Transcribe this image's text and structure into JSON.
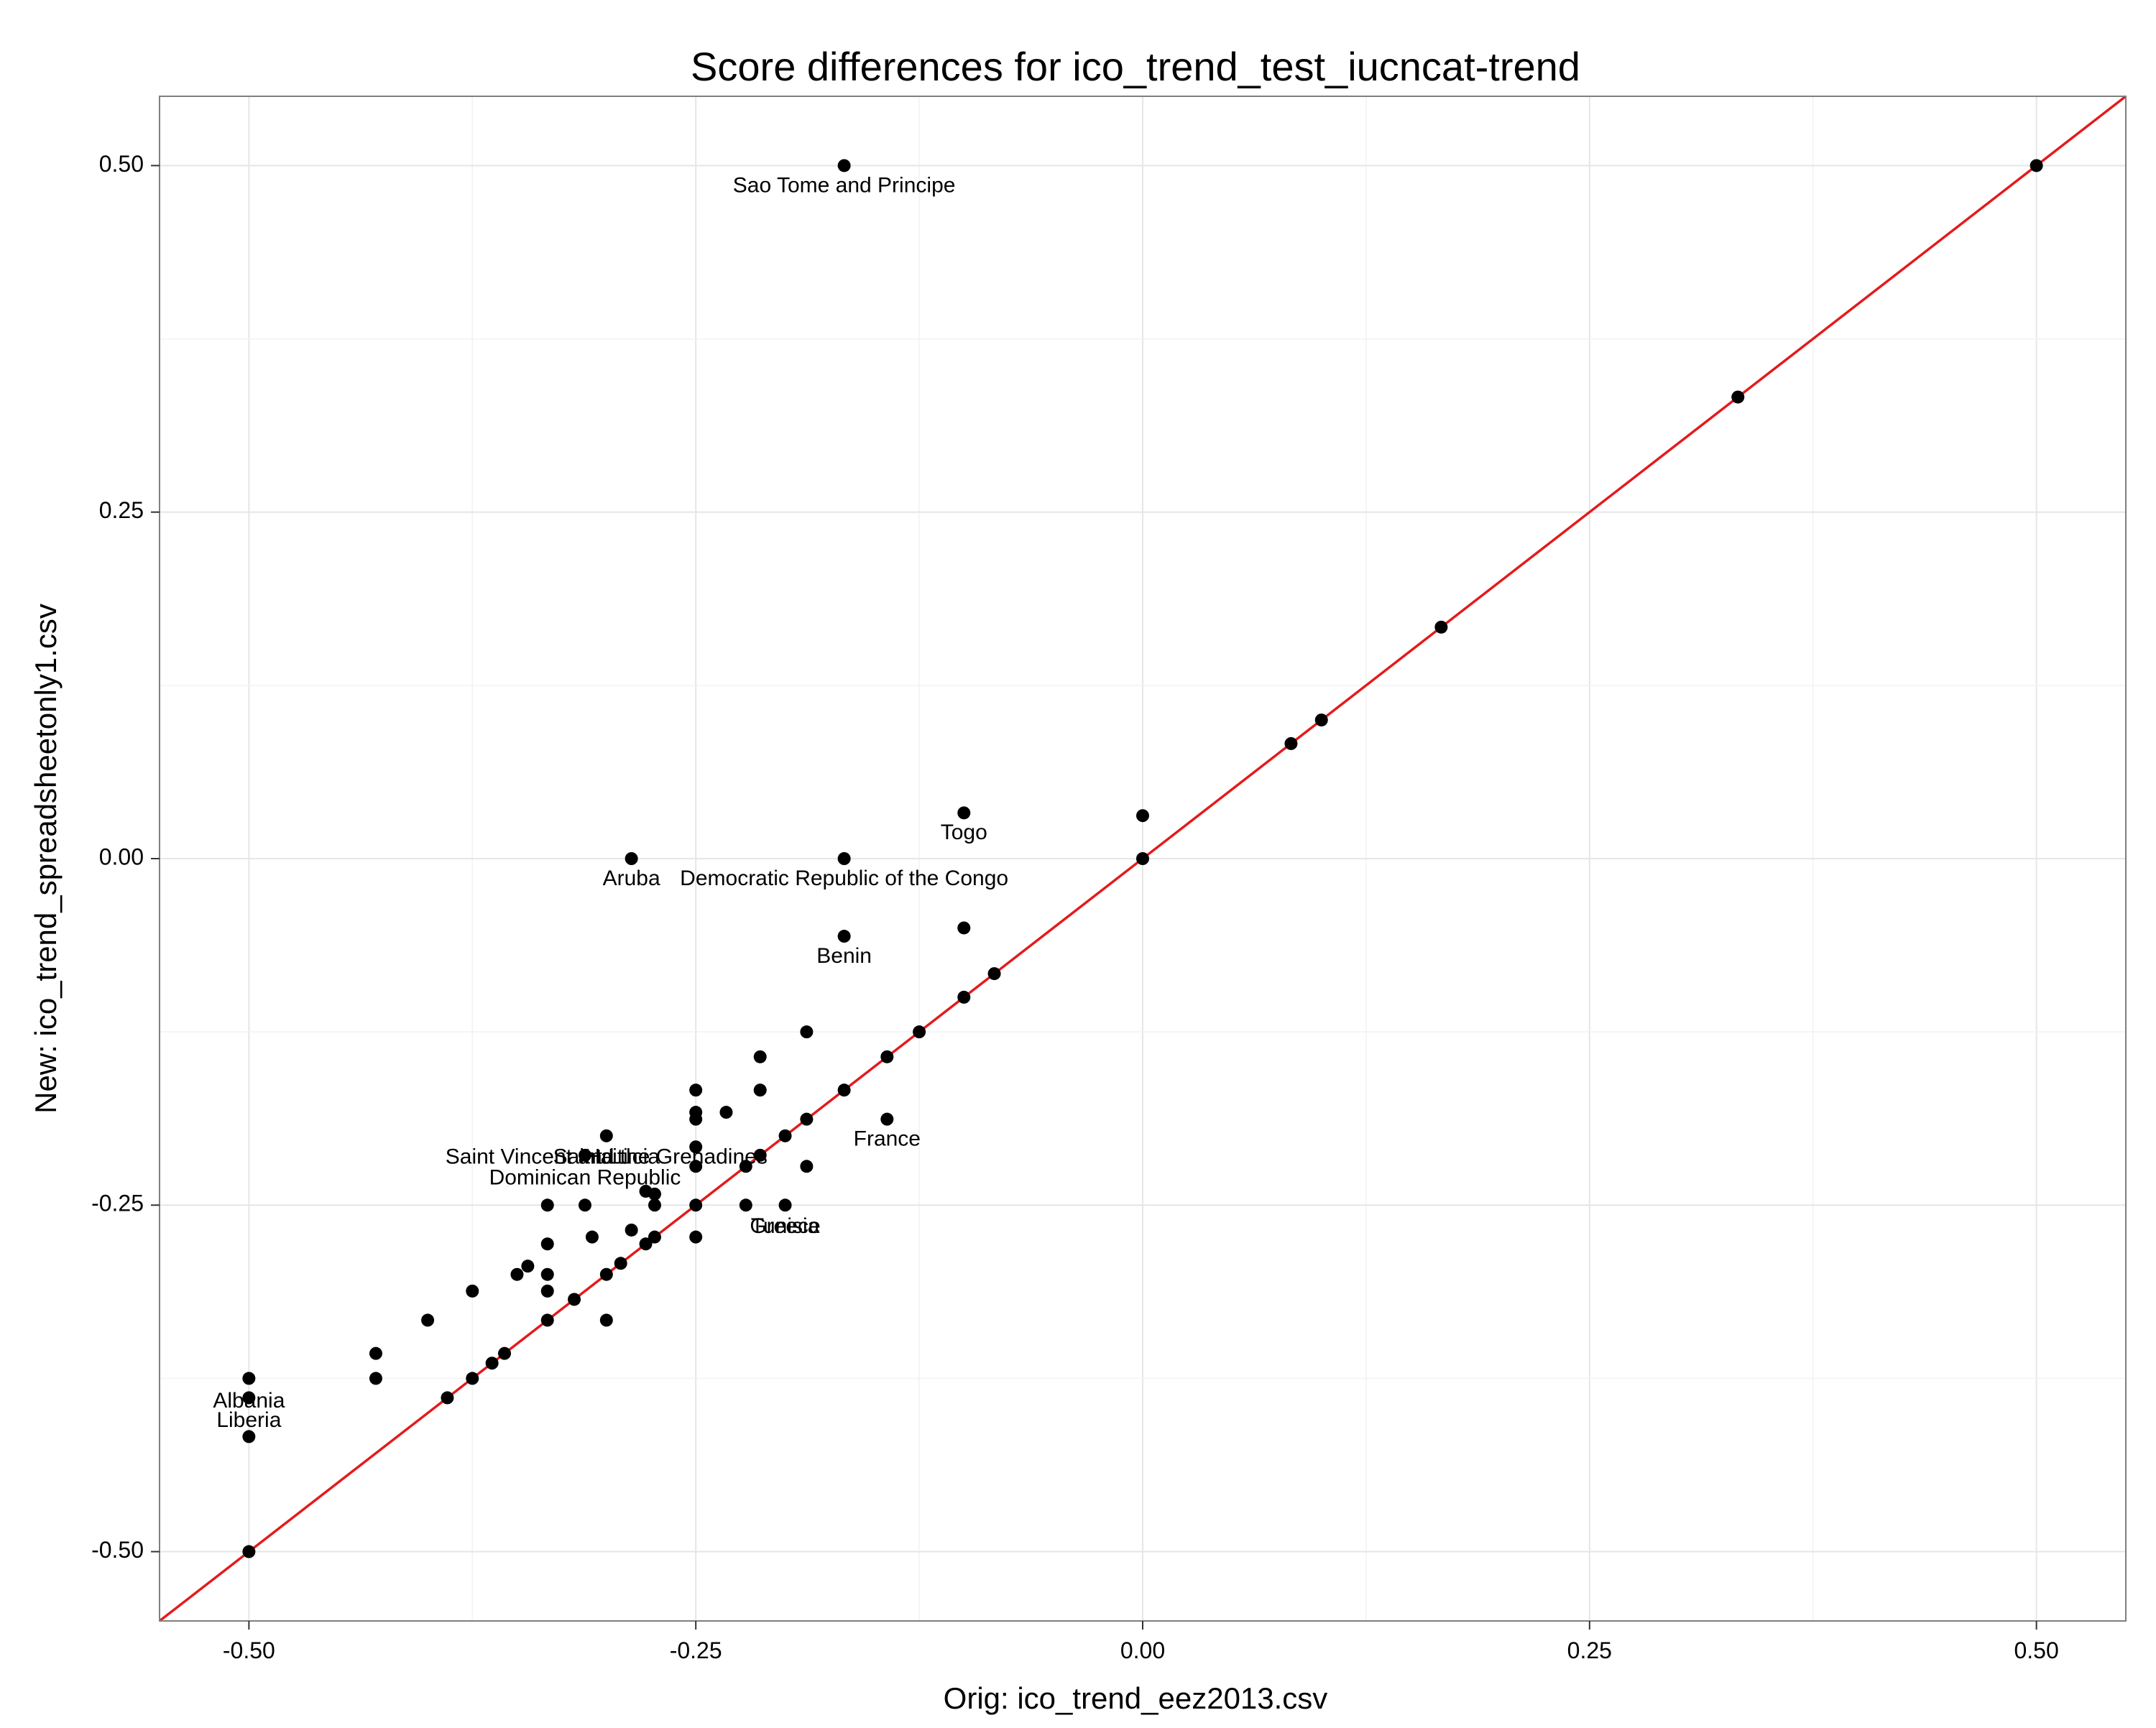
{
  "chart_data": {
    "type": "scatter",
    "title": "Score differences for ico_trend_test_iucncat-trend",
    "xlabel": "Orig: ico_trend_eez2013.csv",
    "ylabel": "New: ico_trend_spreadsheetonly1.csv",
    "xlim": [
      -0.55,
      0.55
    ],
    "ylim": [
      -0.55,
      0.55
    ],
    "x_ticks": [
      -0.5,
      -0.25,
      0.0,
      0.25,
      0.5
    ],
    "y_ticks": [
      -0.5,
      -0.25,
      0.0,
      0.25,
      0.5
    ],
    "x_tick_labels": [
      "-0.50",
      "-0.25",
      "0.00",
      "0.25",
      "0.50"
    ],
    "y_tick_labels": [
      "-0.50",
      "-0.25",
      "0.00",
      "0.25",
      "0.50"
    ],
    "grid": true,
    "reference_line": {
      "type": "identity",
      "slope": 1,
      "intercept": 0,
      "color": "#e41a1c"
    },
    "point_color": "#000000",
    "points": [
      {
        "x": 0.5,
        "y": 0.5
      },
      {
        "x": 0.333,
        "y": 0.333
      },
      {
        "x": 0.167,
        "y": 0.167
      },
      {
        "x": 0.1,
        "y": 0.1
      },
      {
        "x": 0.083,
        "y": 0.083
      },
      {
        "x": 0.0,
        "y": 0.031
      },
      {
        "x": 0.0,
        "y": 0.0
      },
      {
        "x": -0.1,
        "y": 0.033
      },
      {
        "x": -0.1,
        "y": -0.05
      },
      {
        "x": -0.083,
        "y": -0.083
      },
      {
        "x": -0.1,
        "y": -0.1
      },
      {
        "x": -0.125,
        "y": -0.125
      },
      {
        "x": -0.143,
        "y": -0.143
      },
      {
        "x": -0.167,
        "y": 0.5
      },
      {
        "x": -0.167,
        "y": 0.0
      },
      {
        "x": -0.167,
        "y": -0.056
      },
      {
        "x": -0.167,
        "y": -0.167
      },
      {
        "x": -0.143,
        "y": -0.188
      },
      {
        "x": -0.188,
        "y": -0.125
      },
      {
        "x": -0.188,
        "y": -0.188
      },
      {
        "x": -0.188,
        "y": -0.222
      },
      {
        "x": -0.2,
        "y": -0.2
      },
      {
        "x": -0.2,
        "y": -0.25
      },
      {
        "x": -0.214,
        "y": -0.143
      },
      {
        "x": -0.214,
        "y": -0.167
      },
      {
        "x": -0.214,
        "y": -0.214
      },
      {
        "x": -0.222,
        "y": -0.222
      },
      {
        "x": -0.222,
        "y": -0.25
      },
      {
        "x": -0.233,
        "y": -0.183
      },
      {
        "x": -0.25,
        "y": -0.167
      },
      {
        "x": -0.25,
        "y": -0.183
      },
      {
        "x": -0.25,
        "y": -0.188
      },
      {
        "x": -0.25,
        "y": -0.208
      },
      {
        "x": -0.25,
        "y": -0.222
      },
      {
        "x": -0.25,
        "y": -0.25
      },
      {
        "x": -0.25,
        "y": -0.273
      },
      {
        "x": -0.286,
        "y": 0.0
      },
      {
        "x": -0.273,
        "y": -0.242
      },
      {
        "x": -0.273,
        "y": -0.25
      },
      {
        "x": -0.273,
        "y": -0.273
      },
      {
        "x": -0.278,
        "y": -0.24
      },
      {
        "x": -0.278,
        "y": -0.278
      },
      {
        "x": -0.286,
        "y": -0.268
      },
      {
        "x": -0.292,
        "y": -0.292
      },
      {
        "x": -0.3,
        "y": -0.2
      },
      {
        "x": -0.3,
        "y": -0.3
      },
      {
        "x": -0.3,
        "y": -0.333
      },
      {
        "x": -0.308,
        "y": -0.273
      },
      {
        "x": -0.312,
        "y": -0.214
      },
      {
        "x": -0.312,
        "y": -0.25
      },
      {
        "x": -0.318,
        "y": -0.318
      },
      {
        "x": -0.333,
        "y": -0.25
      },
      {
        "x": -0.333,
        "y": -0.278
      },
      {
        "x": -0.333,
        "y": -0.3
      },
      {
        "x": -0.333,
        "y": -0.312
      },
      {
        "x": -0.333,
        "y": -0.333
      },
      {
        "x": -0.344,
        "y": -0.294
      },
      {
        "x": -0.35,
        "y": -0.3
      },
      {
        "x": -0.357,
        "y": -0.357
      },
      {
        "x": -0.364,
        "y": -0.364
      },
      {
        "x": -0.375,
        "y": -0.312
      },
      {
        "x": -0.375,
        "y": -0.375
      },
      {
        "x": -0.389,
        "y": -0.389
      },
      {
        "x": -0.4,
        "y": -0.333
      },
      {
        "x": -0.429,
        "y": -0.357
      },
      {
        "x": -0.429,
        "y": -0.375
      },
      {
        "x": -0.5,
        "y": -0.375
      },
      {
        "x": -0.5,
        "y": -0.389
      },
      {
        "x": -0.5,
        "y": -0.417
      },
      {
        "x": -0.5,
        "y": -0.5
      }
    ],
    "annotations": [
      {
        "text": "Sao Tome and Principe",
        "x": -0.167,
        "y": 0.485
      },
      {
        "text": "Togo",
        "x": -0.1,
        "y": 0.018
      },
      {
        "text": "Aruba",
        "x": -0.286,
        "y": -0.015
      },
      {
        "text": "Democratic Republic of the Congo",
        "x": -0.167,
        "y": -0.015
      },
      {
        "text": "Benin",
        "x": -0.167,
        "y": -0.071
      },
      {
        "text": "France",
        "x": -0.143,
        "y": -0.203
      },
      {
        "text": "Saint Vincent and the Grenadines",
        "x": -0.3,
        "y": -0.216
      },
      {
        "text": "Saint Lucia",
        "x": -0.3,
        "y": -0.216
      },
      {
        "text": "Haiti",
        "x": -0.3,
        "y": -0.216
      },
      {
        "text": "Dominican Republic",
        "x": -0.312,
        "y": -0.231
      },
      {
        "text": "Greece",
        "x": -0.2,
        "y": -0.266
      },
      {
        "text": "Tunisia",
        "x": -0.2,
        "y": -0.266
      },
      {
        "text": "Albania",
        "x": -0.5,
        "y": -0.392
      },
      {
        "text": "Liberia",
        "x": -0.5,
        "y": -0.406
      }
    ]
  }
}
